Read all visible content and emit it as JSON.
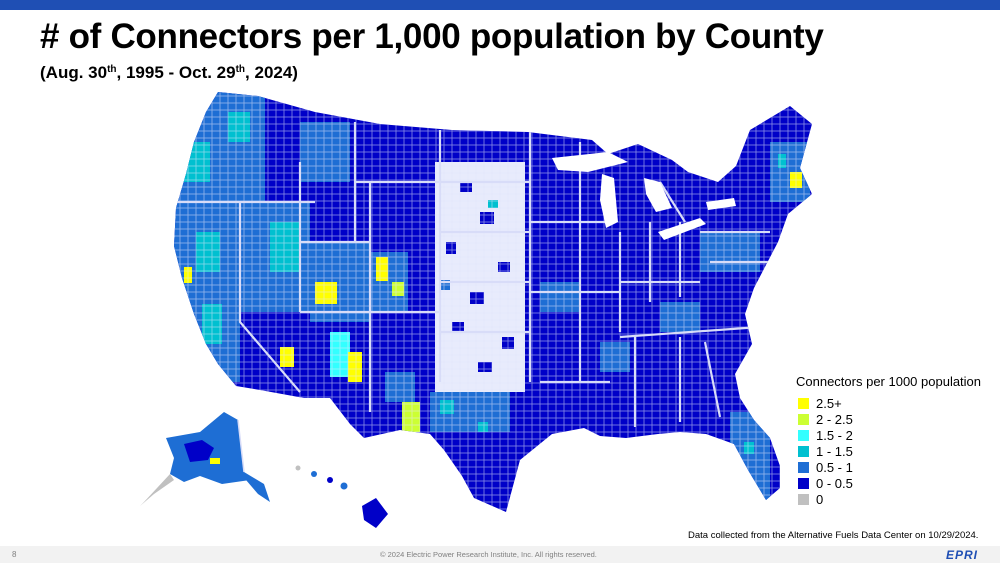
{
  "title": "# of Connectors per 1,000 population by County",
  "subtitle": {
    "p1": "(Aug. 30",
    "sup1": "th",
    "p2": ", 1995 - Oct. 29",
    "sup2": "th",
    "p3": ", 2024)"
  },
  "legend": {
    "title": "Connectors per 1000 population",
    "items": [
      {
        "label": "2.5+",
        "color": "#ffff00"
      },
      {
        "label": "2 - 2.5",
        "color": "#ccff33"
      },
      {
        "label": "1.5 - 2",
        "color": "#33ffff"
      },
      {
        "label": "1 - 1.5",
        "color": "#00c0d0"
      },
      {
        "label": "0.5 - 1",
        "color": "#1e6ed4"
      },
      {
        "label": "0 - 0.5",
        "color": "#0000c8"
      },
      {
        "label": "0",
        "color": "#c0c0c0"
      }
    ]
  },
  "source_note": "Data collected from the Alternative Fuels Data Center  on 10/29/2024.",
  "footer": {
    "page_number": "8",
    "copyright": "© 2024 Electric Power Research Institute, Inc. All rights reserved.",
    "logo": "EPRI"
  },
  "colors": {
    "accent_bar": "#1f4fb4",
    "footer_bar": "#f2f2f2",
    "state_border": "#d8dcf8"
  }
}
